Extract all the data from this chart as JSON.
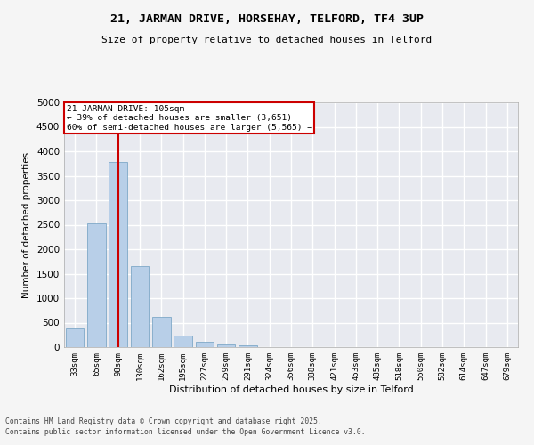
{
  "title_line1": "21, JARMAN DRIVE, HORSEHAY, TELFORD, TF4 3UP",
  "title_line2": "Size of property relative to detached houses in Telford",
  "xlabel": "Distribution of detached houses by size in Telford",
  "ylabel": "Number of detached properties",
  "categories": [
    "33sqm",
    "65sqm",
    "98sqm",
    "130sqm",
    "162sqm",
    "195sqm",
    "227sqm",
    "259sqm",
    "291sqm",
    "324sqm",
    "356sqm",
    "388sqm",
    "421sqm",
    "453sqm",
    "485sqm",
    "518sqm",
    "550sqm",
    "582sqm",
    "614sqm",
    "647sqm",
    "679sqm"
  ],
  "values": [
    380,
    2530,
    3780,
    1650,
    620,
    240,
    110,
    50,
    30,
    0,
    0,
    0,
    0,
    0,
    0,
    0,
    0,
    0,
    0,
    0,
    0
  ],
  "ylim": [
    0,
    5000
  ],
  "yticks": [
    0,
    500,
    1000,
    1500,
    2000,
    2500,
    3000,
    3500,
    4000,
    4500,
    5000
  ],
  "bar_color": "#b8cfe8",
  "bar_edge_color": "#6e9ec0",
  "background_color": "#e8eaf0",
  "grid_color": "#ffffff",
  "vline_x": 2,
  "vline_color": "#cc0000",
  "annotation_title": "21 JARMAN DRIVE: 105sqm",
  "annotation_line1": "← 39% of detached houses are smaller (3,651)",
  "annotation_line2": "60% of semi-detached houses are larger (5,565) →",
  "annotation_box_color": "#cc0000",
  "fig_background": "#f5f5f5",
  "footnote_line1": "Contains HM Land Registry data © Crown copyright and database right 2025.",
  "footnote_line2": "Contains public sector information licensed under the Open Government Licence v3.0."
}
